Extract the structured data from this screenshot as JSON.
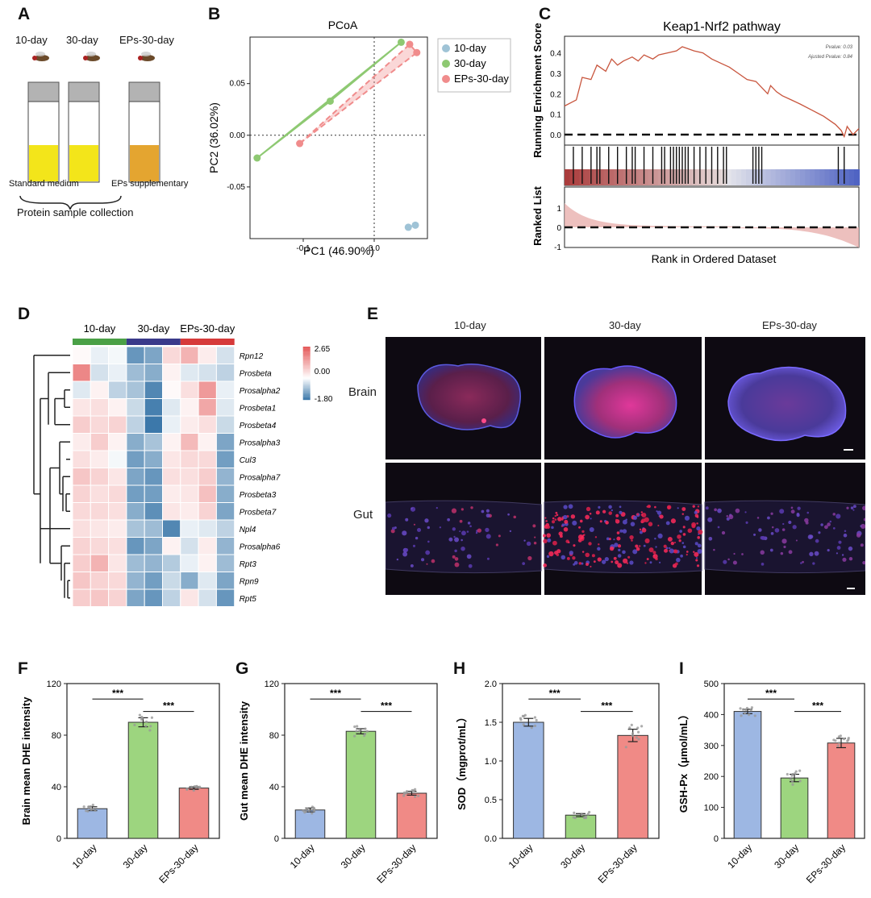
{
  "panels": {
    "A": {
      "label": "A",
      "groups": [
        "10-day",
        "30-day",
        "EPs-30-day"
      ],
      "media": [
        "Standard medium",
        "EPs supplementary"
      ],
      "collection": "Protein sample collection"
    },
    "B": {
      "label": "B",
      "title": "PCoA",
      "xlabel": "PC1 (46.90%)",
      "ylabel": "PC2 (36.02%)",
      "xticks": [
        "-0.1",
        "0.0"
      ],
      "yticks": [
        "0.05",
        "0.00",
        "-0.05"
      ],
      "legend": [
        "10-day",
        "30-day",
        "EPs-30-day"
      ]
    },
    "C": {
      "label": "C",
      "title": "Keap1-Nrf2 pathway",
      "ylabel_top": "Running Enrichment Score",
      "ylabel_bottom": "Ranked List",
      "xlabel": "Rank in Ordered Dataset",
      "yticks_top": [
        "0.4",
        "0.3",
        "0.2",
        "0.1",
        "0.0"
      ],
      "yticks_bottom": [
        "1",
        "0",
        "-1"
      ],
      "stats": [
        "Pvalue: 0.03",
        "Ajusted Pvalue: 0.84"
      ]
    },
    "D": {
      "label": "D",
      "groups": [
        "10-day",
        "30-day",
        "EPs-30-day"
      ],
      "genes": [
        "Rpn12",
        "Prosbeta",
        "Prosalpha2",
        "Prosbeta1",
        "Prosbeta4",
        "Prosalpha3",
        "Cul3",
        "Prosalpha7",
        "Prosbeta3",
        "Prosbeta7",
        "Npl4",
        "Prosalpha6",
        "Rpt3",
        "Rpn9",
        "Rpt5"
      ],
      "scale": [
        "2.65",
        "0.00",
        "-1.80"
      ],
      "matrix": [
        [
          0.1,
          -0.2,
          -0.1,
          -1.4,
          -1.2,
          0.6,
          1.2,
          0.3,
          -0.4
        ],
        [
          1.9,
          -0.4,
          -0.2,
          -0.9,
          -1.1,
          0.2,
          -0.3,
          -0.4,
          -0.6
        ],
        [
          -0.3,
          0.2,
          -0.6,
          -0.8,
          -1.6,
          0.1,
          0.5,
          1.6,
          -0.2
        ],
        [
          0.4,
          0.5,
          0.2,
          -0.5,
          -1.7,
          -0.3,
          0.2,
          1.4,
          -0.3
        ],
        [
          0.8,
          0.6,
          0.7,
          -0.6,
          -1.8,
          -0.2,
          0.3,
          0.5,
          -0.5
        ],
        [
          0.3,
          0.8,
          0.2,
          -1.1,
          -0.8,
          0.2,
          1.1,
          0.2,
          -1.2
        ],
        [
          0.5,
          0.3,
          -0.1,
          -1.3,
          -1.1,
          0.4,
          0.6,
          0.6,
          -1.3
        ],
        [
          0.9,
          0.7,
          0.4,
          -1.2,
          -1.4,
          0.5,
          0.5,
          0.8,
          -1.0
        ],
        [
          0.7,
          0.5,
          0.6,
          -1.3,
          -1.3,
          0.3,
          0.4,
          1.0,
          -1.1
        ],
        [
          0.6,
          0.6,
          0.5,
          -1.1,
          -1.5,
          0.4,
          0.3,
          0.7,
          -1.2
        ],
        [
          0.5,
          0.4,
          0.3,
          -0.8,
          -0.9,
          -1.6,
          -0.2,
          -0.3,
          -0.6
        ],
        [
          0.7,
          0.6,
          0.5,
          -1.4,
          -1.2,
          0.2,
          -0.4,
          0.3,
          -1.0
        ],
        [
          0.8,
          1.2,
          0.4,
          -0.9,
          -1.0,
          -0.7,
          -0.2,
          0.2,
          -0.9
        ],
        [
          0.9,
          0.7,
          0.6,
          -1.0,
          -1.3,
          -0.5,
          -1.1,
          -0.3,
          -1.2
        ],
        [
          0.8,
          0.9,
          0.7,
          -1.2,
          -1.4,
          -0.6,
          0.4,
          -0.4,
          -1.4
        ]
      ]
    },
    "E": {
      "label": "E",
      "columns": [
        "10-day",
        "30-day",
        "EPs-30-day"
      ],
      "rows": [
        "Brain",
        "Gut"
      ]
    },
    "F": {
      "label": "F"
    },
    "G": {
      "label": "G"
    },
    "H": {
      "label": "H"
    },
    "I": {
      "label": "I"
    }
  },
  "chart_data": [
    {
      "type": "scatter",
      "panel": "B",
      "title": "PCoA",
      "xlabel": "PC1 (46.90%)",
      "ylabel": "PC2 (36.02%)",
      "xlim": [
        -0.175,
        0.075
      ],
      "ylim": [
        -0.1,
        0.095
      ],
      "series": [
        {
          "name": "10-day",
          "color": "#9fc3d6",
          "x": [
            0.048,
            0.058
          ],
          "y": [
            -0.089,
            -0.087
          ]
        },
        {
          "name": "30-day",
          "color": "#8ec972",
          "x": [
            -0.165,
            -0.062,
            0.038
          ],
          "y": [
            -0.022,
            0.033,
            0.09
          ]
        },
        {
          "name": "EPs-30-day",
          "color": "#f08c8c",
          "x": [
            -0.105,
            0.05,
            0.06
          ],
          "y": [
            -0.008,
            0.088,
            0.08
          ]
        }
      ]
    },
    {
      "type": "bar",
      "panel": "F",
      "categories": [
        "10-day",
        "30-day",
        "EPs-30-day"
      ],
      "values": [
        23,
        90,
        39
      ],
      "errors": [
        1.5,
        3.5,
        1
      ],
      "ylabel": "Brain mean DHE intensity",
      "ylim": [
        0,
        120
      ],
      "yticks": [
        0,
        40,
        80,
        120
      ],
      "colors": [
        "#9db7e3",
        "#9dd57f",
        "#f08a86"
      ],
      "significance": [
        {
          "from": 0,
          "to": 1,
          "text": "***"
        },
        {
          "from": 1,
          "to": 2,
          "text": "***"
        }
      ]
    },
    {
      "type": "bar",
      "panel": "G",
      "categories": [
        "10-day",
        "30-day",
        "EPs-30-day"
      ],
      "values": [
        22,
        83,
        35
      ],
      "errors": [
        1.5,
        2,
        1.5
      ],
      "ylabel": "Gut mean DHE intensity",
      "ylim": [
        0,
        120
      ],
      "yticks": [
        0,
        40,
        80,
        120
      ],
      "colors": [
        "#9db7e3",
        "#9dd57f",
        "#f08a86"
      ],
      "significance": [
        {
          "from": 0,
          "to": 1,
          "text": "***"
        },
        {
          "from": 1,
          "to": 2,
          "text": "***"
        }
      ]
    },
    {
      "type": "bar",
      "panel": "H",
      "categories": [
        "10-day",
        "30-day",
        "EPs-30-day"
      ],
      "values": [
        1.5,
        0.3,
        1.33
      ],
      "errors": [
        0.05,
        0.02,
        0.08
      ],
      "ylabel": "SOD（mgprot/mL）",
      "ylim": [
        0,
        2.0
      ],
      "yticks": [
        0.0,
        0.5,
        1.0,
        1.5,
        2.0
      ],
      "colors": [
        "#9db7e3",
        "#9dd57f",
        "#f08a86"
      ],
      "significance": [
        {
          "from": 0,
          "to": 1,
          "text": "***"
        },
        {
          "from": 1,
          "to": 2,
          "text": "***"
        }
      ]
    },
    {
      "type": "bar",
      "panel": "I",
      "categories": [
        "10-day",
        "30-day",
        "EPs-30-day"
      ],
      "values": [
        410,
        195,
        308
      ],
      "errors": [
        7,
        12,
        15
      ],
      "ylabel": "GSH-Px（μmol/mL）",
      "ylim": [
        0,
        500
      ],
      "yticks": [
        0,
        100,
        200,
        300,
        400,
        500
      ],
      "colors": [
        "#9db7e3",
        "#9dd57f",
        "#f08a86"
      ],
      "significance": [
        {
          "from": 0,
          "to": 1,
          "text": "***"
        },
        {
          "from": 1,
          "to": 2,
          "text": "***"
        }
      ]
    }
  ]
}
